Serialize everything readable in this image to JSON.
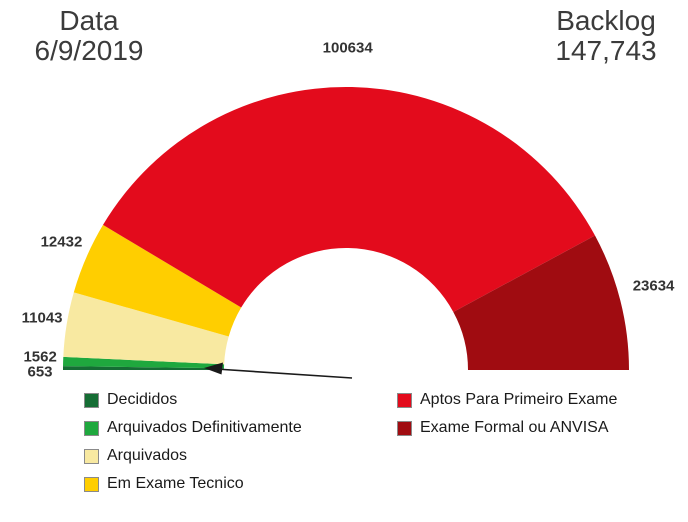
{
  "header": {
    "date_label": "Data",
    "date_value": "6/9/2019",
    "backlog_label": "Backlog",
    "backlog_value": "147,743"
  },
  "chart_data": {
    "type": "pie",
    "variant": "half-donut",
    "start_angle_deg": 180,
    "end_angle_deg": 0,
    "legend_position": "bottom",
    "total_displayed": "147,743",
    "segments": [
      {
        "label": "Decididos",
        "value": 653,
        "color": "#156d34"
      },
      {
        "label": "Arquivados Definitivamente",
        "value": 1562,
        "color": "#1fa83e"
      },
      {
        "label": "Arquivados",
        "value": 11043,
        "color": "#f8e9a1"
      },
      {
        "label": "Em Exame Tecnico",
        "value": 12432,
        "color": "#ffce00"
      },
      {
        "label": "Aptos Para Primeiro Exame",
        "value": 100634,
        "color": "#e30b1c"
      },
      {
        "label": "Exame Formal ou ANVISA",
        "value": 23634,
        "color": "#a00c11"
      }
    ],
    "annotation": "arrow pointing to the two smallest segments at the lower left"
  },
  "legend": {
    "left": [
      {
        "label": "Decididos",
        "color": "#156d34"
      },
      {
        "label": "Arquivados Definitivamente",
        "color": "#1fa83e"
      },
      {
        "label": "Arquivados",
        "color": "#f8e9a1"
      },
      {
        "label": "Em Exame Tecnico",
        "color": "#ffce00"
      }
    ],
    "right": [
      {
        "label": "Aptos Para Primeiro Exame",
        "color": "#e30b1c"
      },
      {
        "label": "Exame Formal ou ANVISA",
        "color": "#a00c11"
      }
    ]
  }
}
